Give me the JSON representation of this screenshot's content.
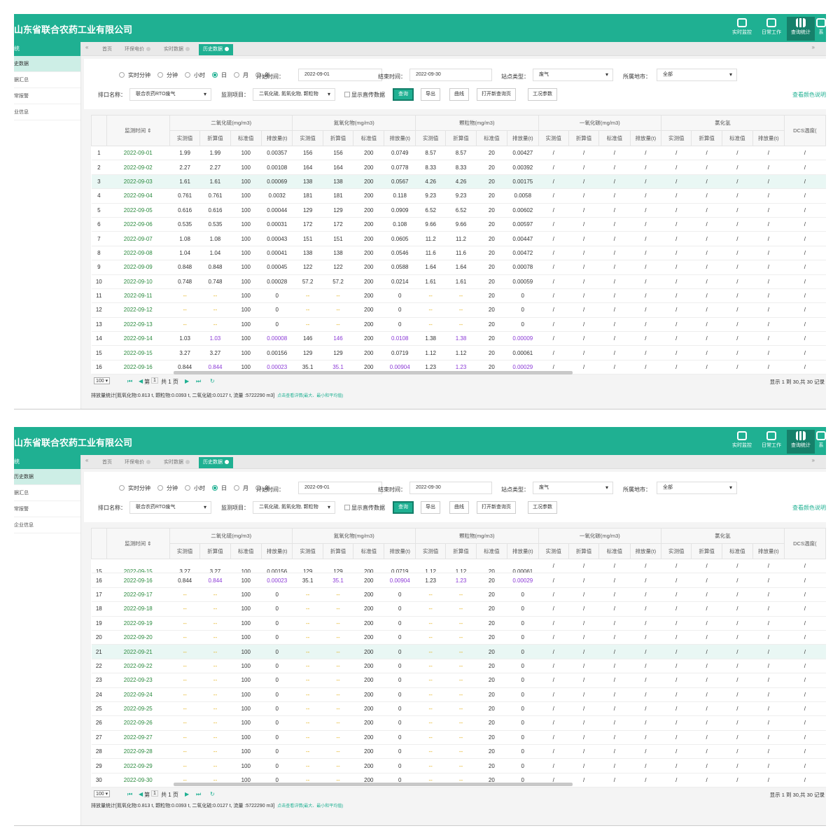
{
  "app_title": "山东省联合农药工业有限公司",
  "toolbar": [
    {
      "label": "实时监控",
      "icon": "database-icon"
    },
    {
      "label": "日常工作",
      "icon": "stack-icon"
    },
    {
      "label": "查询统计",
      "icon": "bar-chart-icon",
      "active": true
    },
    {
      "label": "系",
      "icon": "gear-icon"
    }
  ],
  "sidebar_top": {
    "header": "统",
    "items": [
      "史数据",
      "据汇总",
      "常报警",
      "业信息"
    ]
  },
  "sidebar_bottom": {
    "header": "统",
    "items": [
      "历史数据",
      "据汇总",
      "常报警",
      "企业信息"
    ]
  },
  "tabs": {
    "items": [
      "首页",
      "环保电价",
      "实时数据",
      "历史数据"
    ],
    "nav_left": "«",
    "nav_right": "»"
  },
  "filter": {
    "granularity": [
      "实时分钟",
      "分钟",
      "小时",
      "日",
      "月",
      "年"
    ],
    "selected_granularity": "日",
    "start_label": "开始时间：",
    "start_value": "2022-09-01",
    "end_label": "结束时间：",
    "end_value": "2022-09-30",
    "station_type_label": "站点类型：",
    "station_type_value": "废气",
    "region_label": "所属地市：",
    "region_value": "全部",
    "outlet_label": "排口名称：",
    "outlet_value": "联合农药RTO废气",
    "item_label": "监测项目：",
    "item_value": "二氧化硫, 氮氧化物, 颗粒物",
    "show_upload": "显示直传数据",
    "buttons": [
      "查询",
      "导出",
      "曲线",
      "打开新查询页",
      "工况参数"
    ],
    "color_link": "查看颜色说明"
  },
  "table": {
    "time_header": "监测时间 ⇕",
    "groups": [
      "二氧化硫(mg/m3)",
      "氮氧化物(mg/m3)",
      "颗粒物(mg/m3)",
      "一氧化碳(mg/m3)",
      "氯化氢",
      "DCS温度("
    ],
    "sub_headers": [
      "实测值",
      "折算值",
      "标准值",
      "排放量(t)"
    ],
    "rows": [
      [
        "1",
        "2022-09-01",
        "1.99",
        "1.99",
        "100",
        "0.00357",
        "156",
        "156",
        "200",
        "0.0749",
        "8.57",
        "8.57",
        "20",
        "0.00427"
      ],
      [
        "2",
        "2022-09-02",
        "2.27",
        "2.27",
        "100",
        "0.00108",
        "164",
        "164",
        "200",
        "0.0778",
        "8.33",
        "8.33",
        "20",
        "0.00392"
      ],
      [
        "3",
        "2022-09-03",
        "1.61",
        "1.61",
        "100",
        "0.00069",
        "138",
        "138",
        "200",
        "0.0567",
        "4.26",
        "4.26",
        "20",
        "0.00175"
      ],
      [
        "4",
        "2022-09-04",
        "0.761",
        "0.761",
        "100",
        "0.0032",
        "181",
        "181",
        "200",
        "0.118",
        "9.23",
        "9.23",
        "20",
        "0.0058"
      ],
      [
        "5",
        "2022-09-05",
        "0.616",
        "0.616",
        "100",
        "0.00044",
        "129",
        "129",
        "200",
        "0.0909",
        "6.52",
        "6.52",
        "20",
        "0.00602"
      ],
      [
        "6",
        "2022-09-06",
        "0.535",
        "0.535",
        "100",
        "0.00031",
        "172",
        "172",
        "200",
        "0.108",
        "9.66",
        "9.66",
        "20",
        "0.00597"
      ],
      [
        "7",
        "2022-09-07",
        "1.08",
        "1.08",
        "100",
        "0.00043",
        "151",
        "151",
        "200",
        "0.0605",
        "11.2",
        "11.2",
        "20",
        "0.00447"
      ],
      [
        "8",
        "2022-09-08",
        "1.04",
        "1.04",
        "100",
        "0.00041",
        "138",
        "138",
        "200",
        "0.0546",
        "11.6",
        "11.6",
        "20",
        "0.00472"
      ],
      [
        "9",
        "2022-09-09",
        "0.848",
        "0.848",
        "100",
        "0.00045",
        "122",
        "122",
        "200",
        "0.0588",
        "1.64",
        "1.64",
        "20",
        "0.00078"
      ],
      [
        "10",
        "2022-09-10",
        "0.748",
        "0.748",
        "100",
        "0.00028",
        "57.2",
        "57.2",
        "200",
        "0.0214",
        "1.61",
        "1.61",
        "20",
        "0.00059"
      ],
      [
        "11",
        "2022-09-11",
        "--",
        "--",
        "100",
        "0",
        "--",
        "--",
        "200",
        "0",
        "--",
        "--",
        "20",
        "0"
      ],
      [
        "12",
        "2022-09-12",
        "--",
        "--",
        "100",
        "0",
        "--",
        "--",
        "200",
        "0",
        "--",
        "--",
        "20",
        "0"
      ],
      [
        "13",
        "2022-09-13",
        "--",
        "--",
        "100",
        "0",
        "--",
        "--",
        "200",
        "0",
        "--",
        "--",
        "20",
        "0"
      ],
      [
        "14",
        "2022-09-14",
        "1.03",
        "1.03",
        "100",
        "0.00008",
        "146",
        "146",
        "200",
        "0.0108",
        "1.38",
        "1.38",
        "20",
        "0.00009"
      ],
      [
        "15",
        "2022-09-15",
        "3.27",
        "3.27",
        "100",
        "0.00156",
        "129",
        "129",
        "200",
        "0.0719",
        "1.12",
        "1.12",
        "20",
        "0.00061"
      ],
      [
        "16",
        "2022-09-16",
        "0.844",
        "0.844",
        "100",
        "0.00023",
        "35.1",
        "35.1",
        "200",
        "0.00904",
        "1.23",
        "1.23",
        "20",
        "0.00029"
      ],
      [
        "17",
        "2022-09-17",
        "--",
        "--",
        "100",
        "0",
        "--",
        "--",
        "200",
        "0",
        "--",
        "--",
        "20",
        "0"
      ],
      [
        "18",
        "2022-09-18",
        "--",
        "--",
        "100",
        "0",
        "--",
        "--",
        "200",
        "0",
        "--",
        "--",
        "20",
        "0"
      ],
      [
        "19",
        "2022-09-19",
        "--",
        "--",
        "100",
        "0",
        "--",
        "--",
        "200",
        "0",
        "--",
        "--",
        "20",
        "0"
      ],
      [
        "20",
        "2022-09-20",
        "--",
        "--",
        "100",
        "0",
        "--",
        "--",
        "200",
        "0",
        "--",
        "--",
        "20",
        "0"
      ],
      [
        "21",
        "2022-09-21",
        "--",
        "--",
        "100",
        "0",
        "--",
        "--",
        "200",
        "0",
        "--",
        "--",
        "20",
        "0"
      ],
      [
        "22",
        "2022-09-22",
        "--",
        "--",
        "100",
        "0",
        "--",
        "--",
        "200",
        "0",
        "--",
        "--",
        "20",
        "0"
      ],
      [
        "23",
        "2022-09-23",
        "--",
        "--",
        "100",
        "0",
        "--",
        "--",
        "200",
        "0",
        "--",
        "--",
        "20",
        "0"
      ],
      [
        "24",
        "2022-09-24",
        "--",
        "--",
        "100",
        "0",
        "--",
        "--",
        "200",
        "0",
        "--",
        "--",
        "20",
        "0"
      ],
      [
        "25",
        "2022-09-25",
        "--",
        "--",
        "100",
        "0",
        "--",
        "--",
        "200",
        "0",
        "--",
        "--",
        "20",
        "0"
      ],
      [
        "26",
        "2022-09-26",
        "--",
        "--",
        "100",
        "0",
        "--",
        "--",
        "200",
        "0",
        "--",
        "--",
        "20",
        "0"
      ],
      [
        "27",
        "2022-09-27",
        "--",
        "--",
        "100",
        "0",
        "--",
        "--",
        "200",
        "0",
        "--",
        "--",
        "20",
        "0"
      ],
      [
        "28",
        "2022-09-28",
        "--",
        "--",
        "100",
        "0",
        "--",
        "--",
        "200",
        "0",
        "--",
        "--",
        "20",
        "0"
      ],
      [
        "29",
        "2022-09-29",
        "--",
        "--",
        "100",
        "0",
        "--",
        "--",
        "200",
        "0",
        "--",
        "--",
        "20",
        "0"
      ],
      [
        "30",
        "2022-09-30",
        "--",
        "--",
        "100",
        "0",
        "--",
        "--",
        "200",
        "0",
        "--",
        "--",
        "20",
        "0"
      ]
    ],
    "empty_cell": "/",
    "top_highlight_row": 3,
    "bottom_highlight_row": 21
  },
  "pager": {
    "page_size": "100 ▾",
    "page_label": "第",
    "page_value": "1",
    "page_total": "共 1 页",
    "info": "显示 1 到 30,共 30 记录"
  },
  "stats": {
    "text": "排放量统计[氮氧化物:0.813 t, 颗粒物:0.0393 t, 二氧化硫:0.0127 t, 流量 :5722290 m3]",
    "more": "点击查看详情(最大、最小和平均值)"
  },
  "colors": {
    "brand": "#1fb092",
    "time": "#2b8a3e",
    "dash": "#e0a800",
    "purple": "#8b3ad6"
  }
}
